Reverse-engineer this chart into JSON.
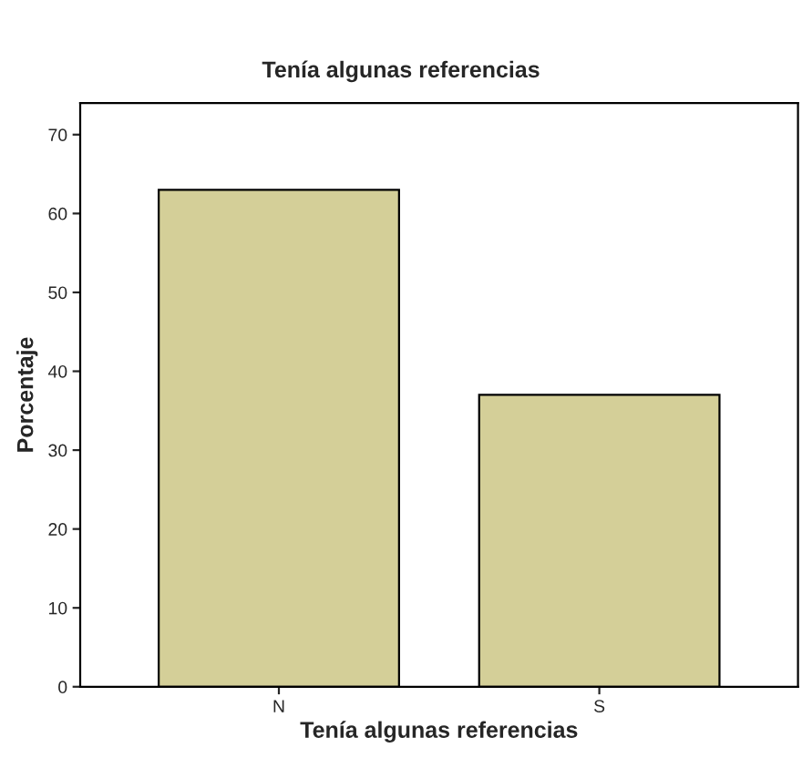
{
  "chart_data": {
    "type": "bar",
    "title": "Tenía algunas referencias",
    "xlabel": "Tenía algunas referencias",
    "ylabel": "Porcentaje",
    "categories": [
      "N",
      "S"
    ],
    "values": [
      63,
      37
    ],
    "color": "#d4cf98",
    "ylim": [
      0,
      74
    ],
    "yticks": [
      0,
      10,
      20,
      30,
      40,
      50,
      60,
      70
    ],
    "grid": false
  }
}
